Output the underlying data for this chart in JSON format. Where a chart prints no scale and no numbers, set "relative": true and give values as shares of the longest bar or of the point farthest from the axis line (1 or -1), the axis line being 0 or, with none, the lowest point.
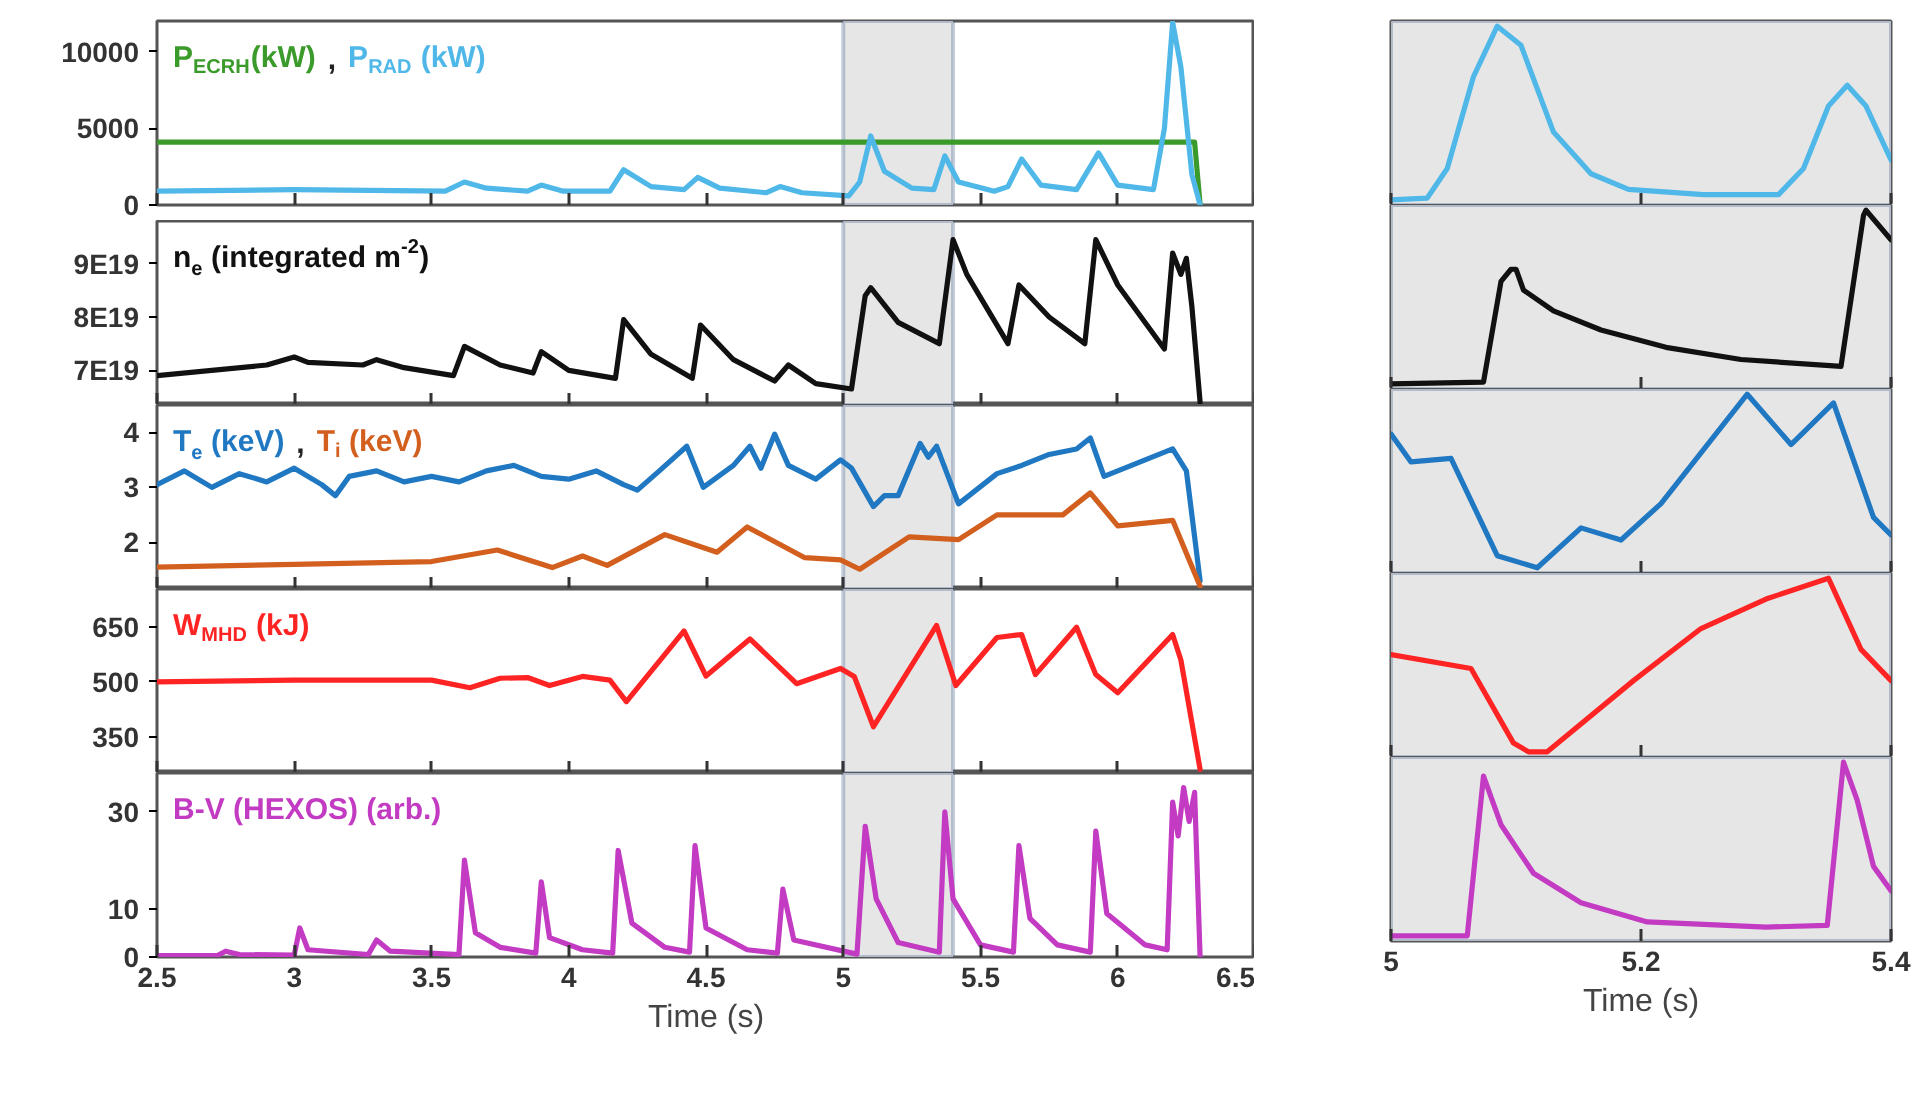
{
  "chart_data": [
    {
      "type": "line",
      "xlim": [
        2.5,
        6.5
      ],
      "xticks": [
        2.5,
        3,
        3.5,
        4,
        4.5,
        5,
        5.5,
        6,
        6.5
      ],
      "ylim": [
        0,
        12000
      ],
      "yticks": [
        0,
        5000,
        10000
      ],
      "tick_labels": "y",
      "annotations": [
        ","
      ],
      "bands": [
        {
          "axis": "x",
          "from": 5,
          "to": 5.4,
          "color": "#e6e6e6"
        }
      ],
      "series": [
        {
          "name": "P$_{ECRH}$(kW)",
          "color": "#3a9a2a",
          "x": [
            2.5,
            3.5,
            4.5,
            5.5,
            6.28,
            6.3
          ],
          "values": [
            4100,
            4100,
            4100,
            4100,
            4100,
            0
          ]
        },
        {
          "name": "P$_{RAD}$ (kW)",
          "color": "#4fb8e8",
          "x": [
            2.5,
            3.0,
            3.55,
            3.62,
            3.7,
            3.85,
            3.9,
            3.98,
            4.15,
            4.2,
            4.3,
            4.42,
            4.47,
            4.55,
            4.72,
            4.77,
            4.85,
            5.02,
            5.06,
            5.1,
            5.15,
            5.25,
            5.33,
            5.37,
            5.42,
            5.55,
            5.6,
            5.65,
            5.72,
            5.85,
            5.9,
            5.93,
            6.0,
            6.13,
            6.17,
            6.2,
            6.23,
            6.27,
            6.3
          ],
          "values": [
            900,
            1000,
            900,
            1500,
            1100,
            900,
            1300,
            900,
            900,
            2300,
            1200,
            1000,
            1800,
            1100,
            800,
            1200,
            800,
            600,
            1500,
            4500,
            2200,
            1100,
            1000,
            3200,
            1500,
            900,
            1200,
            3000,
            1300,
            1000,
            2500,
            3400,
            1300,
            1000,
            5000,
            11900,
            9000,
            2000,
            0
          ]
        }
      ]
    },
    {
      "type": "line",
      "xlim": [
        2.5,
        6.5
      ],
      "xticks": [
        2.5,
        3,
        3.5,
        4,
        4.5,
        5,
        5.5,
        6,
        6.5
      ],
      "ylim": [
        6.35e+19,
        9.8e+19
      ],
      "yticks": [
        {
          "value": 7e+19,
          "label": "7E19"
        },
        {
          "value": 8e+19,
          "label": "8E19"
        },
        {
          "value": 9e+19,
          "label": "9E19"
        }
      ],
      "tick_labels": "y",
      "bands": [
        {
          "axis": "x",
          "from": 5,
          "to": 5.4,
          "color": "#e6e6e6"
        }
      ],
      "series": [
        {
          "name": "n$_{e}$ (integrated m$^{-2}$)",
          "color": "#111111",
          "x": [
            2.5,
            2.9,
            3.0,
            3.05,
            3.25,
            3.3,
            3.4,
            3.58,
            3.62,
            3.75,
            3.87,
            3.9,
            4.0,
            4.17,
            4.2,
            4.3,
            4.45,
            4.48,
            4.6,
            4.75,
            4.8,
            4.9,
            5.03,
            5.08,
            5.1,
            5.2,
            5.35,
            5.4,
            5.45,
            5.6,
            5.64,
            5.75,
            5.88,
            5.92,
            6.0,
            6.17,
            6.2,
            6.23,
            6.25,
            6.27,
            6.3
          ],
          "values": [
            6.9e+19,
            7.1e+19,
            7.25e+19,
            7.15e+19,
            7.1e+19,
            7.2e+19,
            7.05e+19,
            6.9e+19,
            7.45e+19,
            7.1e+19,
            6.95e+19,
            7.35e+19,
            7e+19,
            6.85e+19,
            7.95e+19,
            7.3e+19,
            6.85e+19,
            7.85e+19,
            7.2e+19,
            6.8e+19,
            7.1e+19,
            6.75e+19,
            6.65e+19,
            8.4e+19,
            8.55e+19,
            7.9e+19,
            7.5e+19,
            9.45e+19,
            8.8e+19,
            7.5e+19,
            8.6e+19,
            8e+19,
            7.5e+19,
            9.45e+19,
            8.6e+19,
            7.4e+19,
            9.2e+19,
            8.8e+19,
            9.1e+19,
            8.2e+19,
            6.4e+19
          ]
        }
      ]
    },
    {
      "type": "line",
      "xlim": [
        2.5,
        6.5
      ],
      "xticks": [
        2.5,
        3,
        3.5,
        4,
        4.5,
        5,
        5.5,
        6,
        6.5
      ],
      "ylim": [
        1.15,
        4.5
      ],
      "yticks": [
        2,
        3,
        4
      ],
      "tick_labels": "y",
      "annotations": [
        ","
      ],
      "bands": [
        {
          "axis": "x",
          "from": 5,
          "to": 5.4,
          "color": "#e6e6e6"
        }
      ],
      "series": [
        {
          "name": "T$_{e}$ (keV)",
          "color": "#1f78c1",
          "x": [
            2.5,
            2.6,
            2.7,
            2.8,
            2.9,
            3.0,
            3.1,
            3.15,
            3.2,
            3.3,
            3.4,
            3.5,
            3.6,
            3.7,
            3.8,
            3.9,
            4.0,
            4.1,
            4.2,
            4.25,
            4.33,
            4.43,
            4.49,
            4.6,
            4.66,
            4.7,
            4.75,
            4.8,
            4.9,
            4.99,
            5.03,
            5.11,
            5.15,
            5.2,
            5.28,
            5.31,
            5.34,
            5.42,
            5.56,
            5.65,
            5.75,
            5.85,
            5.9,
            5.95,
            6.05,
            6.15,
            6.2,
            6.25,
            6.3
          ],
          "values": [
            3.05,
            3.3,
            3.0,
            3.25,
            3.1,
            3.35,
            3.05,
            2.85,
            3.2,
            3.3,
            3.1,
            3.2,
            3.1,
            3.3,
            3.4,
            3.2,
            3.15,
            3.3,
            3.05,
            2.95,
            3.3,
            3.75,
            3.0,
            3.4,
            3.75,
            3.35,
            3.97,
            3.4,
            3.15,
            3.5,
            3.35,
            2.65,
            2.85,
            2.85,
            3.8,
            3.55,
            3.75,
            2.7,
            3.25,
            3.4,
            3.6,
            3.7,
            3.9,
            3.2,
            3.4,
            3.6,
            3.7,
            3.3,
            1.3
          ]
        },
        {
          "name": "T$_{i}$ (keV)",
          "color": "#d35f1e",
          "x": [
            2.5,
            3.0,
            3.5,
            3.74,
            3.94,
            4.05,
            4.14,
            4.35,
            4.54,
            4.65,
            4.86,
            4.99,
            5.06,
            5.24,
            5.42,
            5.56,
            5.8,
            5.9,
            6.0,
            6.2,
            6.3
          ],
          "values": [
            1.55,
            1.6,
            1.65,
            1.86,
            1.54,
            1.75,
            1.58,
            2.14,
            1.82,
            2.28,
            1.72,
            1.68,
            1.51,
            2.1,
            2.05,
            2.5,
            2.5,
            2.9,
            2.3,
            2.4,
            1.2
          ]
        }
      ]
    },
    {
      "type": "line",
      "xlim": [
        2.5,
        6.5
      ],
      "xticks": [
        2.5,
        3,
        3.5,
        4,
        4.5,
        5,
        5.5,
        6,
        6.5
      ],
      "ylim": [
        250,
        755
      ],
      "yticks": [
        350,
        500,
        650
      ],
      "tick_labels": "y",
      "bands": [
        {
          "axis": "x",
          "from": 5,
          "to": 5.4,
          "color": "#e6e6e6"
        }
      ],
      "series": [
        {
          "name": "W$_{MHD}$ (kJ)",
          "color": "#ff2424",
          "x": [
            2.5,
            3.0,
            3.5,
            3.64,
            3.75,
            3.85,
            3.93,
            4.05,
            4.15,
            4.21,
            4.42,
            4.5,
            4.66,
            4.83,
            4.99,
            5.04,
            5.11,
            5.34,
            5.41,
            5.56,
            5.65,
            5.7,
            5.85,
            5.92,
            6.0,
            6.2,
            6.23,
            6.3
          ],
          "values": [
            500,
            505,
            505,
            484,
            510,
            512,
            490,
            515,
            505,
            446,
            640,
            516,
            618,
            495,
            537,
            515,
            377,
            655,
            490,
            622,
            630,
            520,
            650,
            520,
            470,
            630,
            560,
            260
          ]
        }
      ]
    },
    {
      "type": "line",
      "xlabel": "Time (s)",
      "xlim": [
        2.5,
        6.5
      ],
      "xticks": [
        2.5,
        3,
        3.5,
        4,
        4.5,
        5,
        5.5,
        6,
        6.5
      ],
      "ylim": [
        0,
        38
      ],
      "yticks": [
        0,
        10,
        30
      ],
      "bands": [
        {
          "axis": "x",
          "from": 5,
          "to": 5.4,
          "color": "#e6e6e6"
        }
      ],
      "series": [
        {
          "name": "B-V (HEXOS) (arb.)",
          "color": "#c23bc2",
          "x": [
            2.5,
            2.72,
            2.75,
            2.8,
            3.0,
            3.02,
            3.05,
            3.27,
            3.3,
            3.35,
            3.6,
            3.62,
            3.66,
            3.75,
            3.88,
            3.9,
            3.93,
            4.05,
            4.16,
            4.18,
            4.23,
            4.35,
            4.44,
            4.46,
            4.5,
            4.65,
            4.76,
            4.78,
            4.82,
            5.05,
            5.08,
            5.12,
            5.2,
            5.35,
            5.37,
            5.4,
            5.5,
            5.62,
            5.64,
            5.68,
            5.78,
            5.9,
            5.92,
            5.96,
            6.1,
            6.18,
            6.2,
            6.22,
            6.24,
            6.26,
            6.28,
            6.3
          ],
          "values": [
            0.3,
            0.3,
            1.2,
            0.5,
            0.4,
            6,
            1.5,
            0.5,
            3.5,
            1.2,
            0.5,
            20,
            5,
            2,
            0.8,
            15.5,
            4,
            1.5,
            0.8,
            22,
            7,
            2,
            1,
            23,
            6,
            1.5,
            0.8,
            14,
            3.5,
            0.6,
            27,
            12,
            3,
            1,
            30,
            12,
            2.5,
            1,
            23,
            8,
            2.5,
            1,
            26,
            9,
            2.5,
            1.5,
            32,
            25,
            35,
            28,
            34,
            0
          ]
        }
      ]
    },
    {
      "type": "line",
      "relative": true,
      "xlim": [
        5,
        5.4
      ],
      "xticks": [
        5,
        5.2,
        5.4
      ],
      "tick_labels": false,
      "bands": [
        {
          "axis": "x",
          "from": 5,
          "to": 5.4,
          "color": "#e6e6e6"
        }
      ],
      "series": [
        {
          "color": "#4fb8e8",
          "x": [
            5.0,
            5.029,
            5.045,
            5.066,
            5.085,
            5.104,
            5.13,
            5.16,
            5.19,
            5.25,
            5.31,
            5.33,
            5.35,
            5.365,
            5.38,
            5.4
          ],
          "values": [
            0,
            0.01,
            0.18,
            0.71,
            1.0,
            0.89,
            0.39,
            0.15,
            0.06,
            0.03,
            0.03,
            0.18,
            0.54,
            0.66,
            0.54,
            0.23
          ]
        }
      ]
    },
    {
      "type": "line",
      "relative": true,
      "xlim": [
        5,
        5.4
      ],
      "xticks": [
        5,
        5.2,
        5.4
      ],
      "tick_labels": false,
      "bands": [
        {
          "axis": "x",
          "from": 5,
          "to": 5.4,
          "color": "#e6e6e6"
        }
      ],
      "series": [
        {
          "color": "#111111",
          "x": [
            5.0,
            5.074,
            5.088,
            5.096,
            5.1,
            5.106,
            5.13,
            5.168,
            5.22,
            5.28,
            5.36,
            5.378,
            5.38,
            5.4
          ],
          "values": [
            0,
            0.01,
            0.59,
            0.66,
            0.66,
            0.54,
            0.42,
            0.31,
            0.21,
            0.14,
            0.1,
            0.97,
            1.0,
            0.83
          ]
        }
      ]
    },
    {
      "type": "line",
      "relative": true,
      "xlim": [
        5,
        5.4
      ],
      "xticks": [
        5,
        5.2,
        5.4
      ],
      "tick_labels": false,
      "bands": [
        {
          "axis": "x",
          "from": 5,
          "to": 5.4,
          "color": "#e6e6e6"
        }
      ],
      "series": [
        {
          "color": "#1f78c1",
          "x": [
            5.0,
            5.016,
            5.048,
            5.085,
            5.117,
            5.152,
            5.184,
            5.216,
            5.285,
            5.32,
            5.354,
            5.386,
            5.4
          ],
          "values": [
            0.77,
            0.61,
            0.63,
            0.07,
            0,
            0.23,
            0.16,
            0.37,
            1.0,
            0.71,
            0.95,
            0.29,
            0.19
          ]
        }
      ]
    },
    {
      "type": "line",
      "relative": true,
      "xlim": [
        5,
        5.4
      ],
      "xticks": [
        5,
        5.2,
        5.4
      ],
      "tick_labels": false,
      "bands": [
        {
          "axis": "x",
          "from": 5,
          "to": 5.4,
          "color": "#e6e6e6"
        }
      ],
      "series": [
        {
          "color": "#ff2424",
          "x": [
            5.0,
            5.064,
            5.098,
            5.11,
            5.125,
            5.194,
            5.248,
            5.3,
            5.35,
            5.376,
            5.4
          ],
          "values": [
            0.56,
            0.48,
            0.05,
            0,
            0,
            0.41,
            0.71,
            0.88,
            1.0,
            0.59,
            0.41
          ]
        }
      ]
    },
    {
      "type": "line",
      "relative": true,
      "xlabel": "Time (s)",
      "xlim": [
        5,
        5.4
      ],
      "xticks": [
        5,
        5.2,
        5.4
      ],
      "tick_labels": "x",
      "bands": [
        {
          "axis": "x",
          "from": 5,
          "to": 5.4,
          "color": "#e6e6e6"
        }
      ],
      "series": [
        {
          "color": "#c23bc2",
          "x": [
            5.0,
            5.061,
            5.074,
            5.088,
            5.114,
            5.152,
            5.205,
            5.3,
            5.349,
            5.362,
            5.373,
            5.386,
            5.4
          ],
          "values": [
            0,
            0,
            0.92,
            0.64,
            0.36,
            0.19,
            0.08,
            0.05,
            0.06,
            1.0,
            0.78,
            0.4,
            0.26
          ]
        }
      ]
    }
  ]
}
